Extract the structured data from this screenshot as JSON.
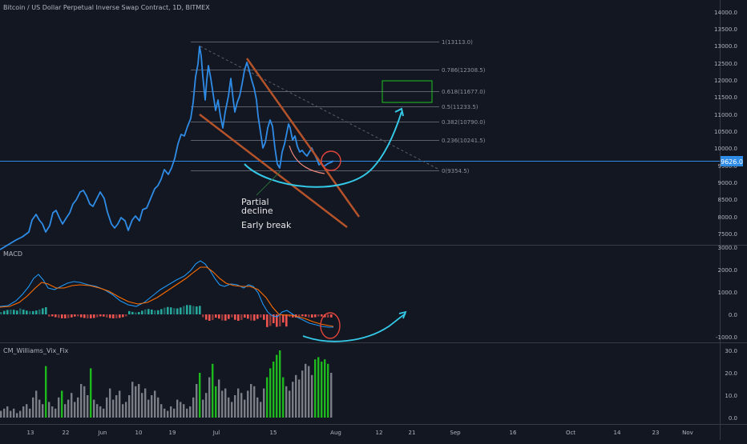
{
  "header": {
    "title": "Bitcoin / US Dollar Perpetual Inverse Swap Contract, 1D, BITMEX"
  },
  "colors": {
    "background": "#131722",
    "price_line": "#2f8ce6",
    "fib_line": "#5d606b",
    "channel": "#b4532a",
    "annotation_arrow": "#35c9e8",
    "target_box": "#1ec31e",
    "macd_line": "#2196f3",
    "signal_line": "#ff6d00",
    "hist_pos": "#26a69a",
    "hist_neg": "#ef5350",
    "vix_high": "#1db91d",
    "vix_normal": "#7b7e86",
    "current_price_tag": "#2f8ce6"
  },
  "main_pane": {
    "price_axis": [
      "14000.0",
      "13500.0",
      "13000.0",
      "12500.0",
      "12000.0",
      "11500.0",
      "11000.0",
      "10500.0",
      "10000.0",
      "9500.0",
      "9000.0",
      "8500.0",
      "8000.0",
      "7500.0"
    ],
    "current_price": "9626.0",
    "fib_levels": [
      {
        "label": "1(13113.0)"
      },
      {
        "label": "0.786(12308.5)"
      },
      {
        "label": "0.618(11677.0)"
      },
      {
        "label": "0.5(11233.5)"
      },
      {
        "label": "0.382(10790.0)"
      },
      {
        "label": "0.236(10241.5)"
      },
      {
        "label": "0(9354.5)"
      }
    ],
    "annotations": {
      "partial": "Partial",
      "decline": "decline",
      "early_break": "Early break"
    }
  },
  "macd_pane": {
    "label": "MACD",
    "axis": [
      "3000.0",
      "2000.0",
      "1000.0",
      "0.0",
      "-1000.0"
    ]
  },
  "vix_pane": {
    "label": "CM_Williams_Vix_Fix",
    "axis": [
      "30.0",
      "20.0",
      "10.0",
      "0.0"
    ]
  },
  "time_axis": [
    "13",
    "22",
    "Jun",
    "10",
    "19",
    "Jul",
    "15",
    "Aug",
    "12",
    "21",
    "Sep",
    "16",
    "Oct",
    "14",
    "23",
    "Nov"
  ]
}
